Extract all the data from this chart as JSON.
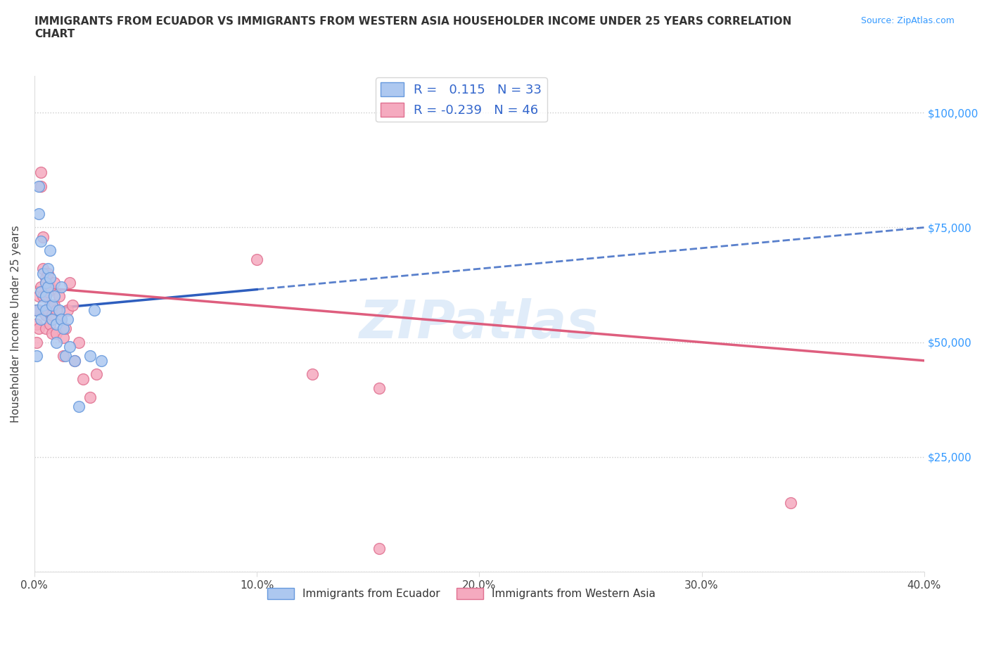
{
  "title": "IMMIGRANTS FROM ECUADOR VS IMMIGRANTS FROM WESTERN ASIA HOUSEHOLDER INCOME UNDER 25 YEARS CORRELATION\nCHART",
  "source_text": "Source: ZipAtlas.com",
  "ylabel": "Householder Income Under 25 years",
  "xlim": [
    0.0,
    0.4
  ],
  "ylim": [
    0,
    108000
  ],
  "yticks": [
    0,
    25000,
    50000,
    75000,
    100000
  ],
  "ytick_labels": [
    "",
    "$25,000",
    "$50,000",
    "$75,000",
    "$100,000"
  ],
  "xticks": [
    0.0,
    0.1,
    0.2,
    0.3,
    0.4
  ],
  "xtick_labels": [
    "0.0%",
    "10.0%",
    "20.0%",
    "30.0%",
    "40.0%"
  ],
  "ecuador_color": "#adc8f0",
  "ecuador_edge": "#6699dd",
  "western_asia_color": "#f5aabf",
  "western_asia_edge": "#e07090",
  "trendline_ecuador_color": "#2255bb",
  "trendline_western_asia_color": "#dd5577",
  "watermark": "ZIPatlas",
  "watermark_color": "#cce0f5",
  "ecuador_R": 0.115,
  "ecuador_N": 33,
  "western_asia_R": -0.239,
  "western_asia_N": 46,
  "ecuador_x": [
    0.001,
    0.001,
    0.002,
    0.002,
    0.003,
    0.003,
    0.003,
    0.004,
    0.004,
    0.005,
    0.005,
    0.005,
    0.006,
    0.006,
    0.007,
    0.007,
    0.008,
    0.008,
    0.009,
    0.01,
    0.01,
    0.011,
    0.012,
    0.012,
    0.013,
    0.014,
    0.015,
    0.016,
    0.018,
    0.02,
    0.025,
    0.027,
    0.03
  ],
  "ecuador_y": [
    57000,
    47000,
    78000,
    84000,
    61000,
    55000,
    72000,
    65000,
    58000,
    63000,
    57000,
    60000,
    62000,
    66000,
    70000,
    64000,
    58000,
    55000,
    60000,
    54000,
    50000,
    57000,
    55000,
    62000,
    53000,
    47000,
    55000,
    49000,
    46000,
    36000,
    47000,
    57000,
    46000
  ],
  "western_asia_x": [
    0.001,
    0.001,
    0.001,
    0.002,
    0.002,
    0.002,
    0.003,
    0.003,
    0.003,
    0.004,
    0.004,
    0.004,
    0.005,
    0.005,
    0.005,
    0.005,
    0.006,
    0.006,
    0.006,
    0.007,
    0.007,
    0.007,
    0.008,
    0.008,
    0.009,
    0.009,
    0.01,
    0.01,
    0.011,
    0.012,
    0.013,
    0.013,
    0.014,
    0.015,
    0.016,
    0.017,
    0.018,
    0.02,
    0.022,
    0.025,
    0.028,
    0.1,
    0.125,
    0.155,
    0.34,
    0.155
  ],
  "western_asia_y": [
    57000,
    54000,
    50000,
    60000,
    57000,
    53000,
    87000,
    84000,
    62000,
    73000,
    66000,
    60000,
    64000,
    60000,
    56000,
    53000,
    65000,
    61000,
    57000,
    62000,
    58000,
    54000,
    56000,
    52000,
    63000,
    58000,
    57000,
    52000,
    60000,
    55000,
    51000,
    47000,
    53000,
    57000,
    63000,
    58000,
    46000,
    50000,
    42000,
    38000,
    43000,
    68000,
    43000,
    40000,
    15000,
    5000
  ],
  "trendline_ecuador_intercept": 57000,
  "trendline_ecuador_slope": 45000,
  "trendline_western_asia_intercept": 62000,
  "trendline_western_asia_slope": -40000
}
